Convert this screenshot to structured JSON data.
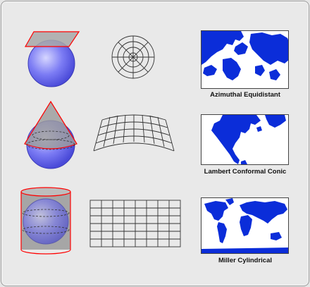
{
  "projections": [
    {
      "name": "Azimuthal Equidistant",
      "surface": "plane-icon",
      "grid": "polar-grid"
    },
    {
      "name": "Lambert Conformal Conic",
      "surface": "cone-icon",
      "grid": "conic-grid"
    },
    {
      "name": "Miller Cylindrical",
      "surface": "cylinder-icon",
      "grid": "rectangular-grid"
    }
  ],
  "colors": {
    "globe": "#6a6af0",
    "globe_highlight": "#d2d2ff",
    "projection_surface": "#9c9c9c",
    "outline": "#ff0000",
    "land": "#0b2dd9",
    "ocean": "#ffffff",
    "grid_line": "#333333"
  }
}
